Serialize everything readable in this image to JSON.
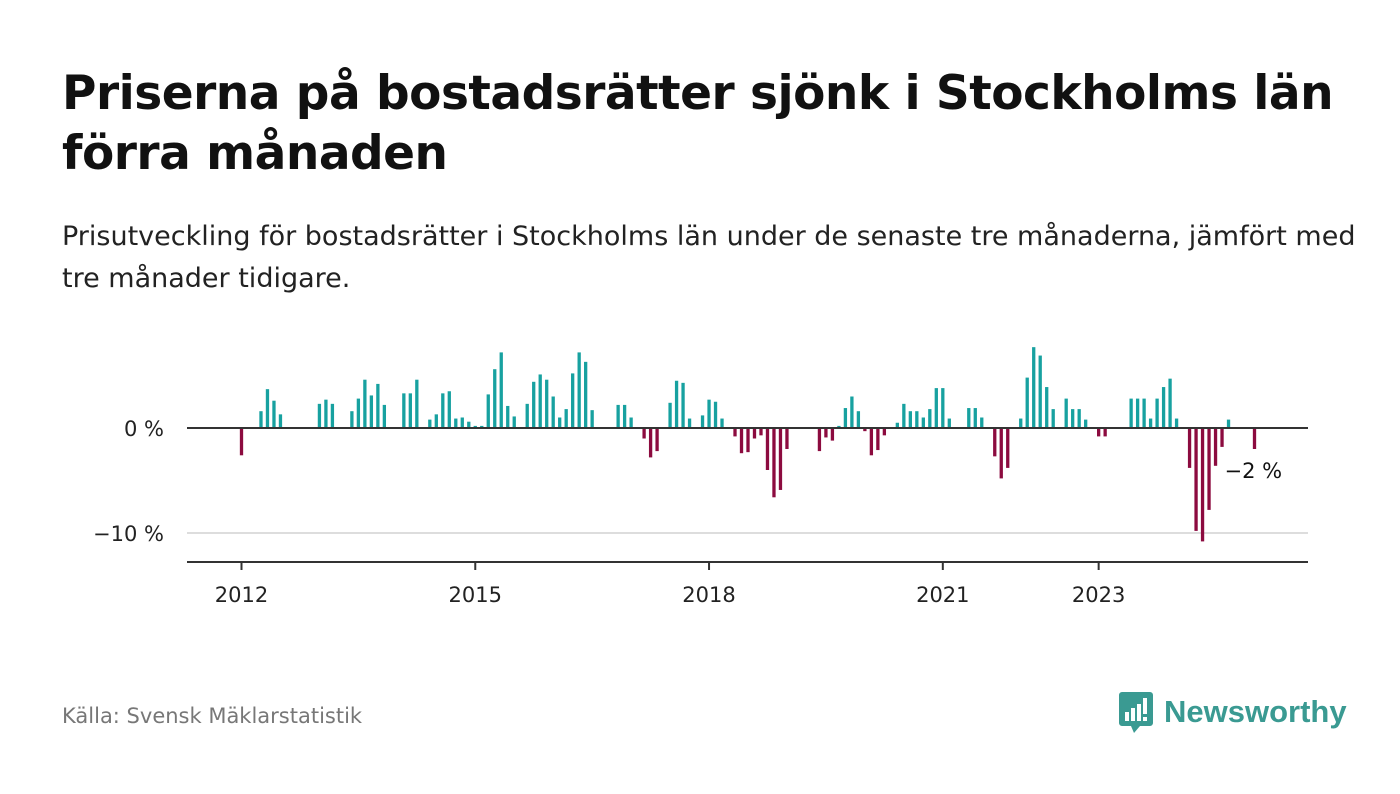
{
  "title": "Priserna på bostadsrätter sjönk i Stockholms län förra månaden",
  "subtitle": "Prisutveckling för bostadsrätter i Stockholms län under de senaste tre månaderna, jämfört med tre månader tidigare.",
  "source": "Källa: Svensk Mäklarstatistik",
  "brand": "Newsworthy",
  "colors": {
    "positive": "#17a1a0",
    "negative": "#8c0b3f",
    "zero_line": "#333333",
    "grid": "#dddddd",
    "brand": "#3a9a92"
  },
  "chart_data": {
    "type": "bar",
    "x_start": "2012-01",
    "x_end": "2023-01",
    "x_step": "month",
    "xticks": [
      "2012",
      "2015",
      "2018",
      "2021",
      "2023"
    ],
    "ytick_labels": [
      "0 %",
      "−10 %"
    ],
    "yticks": [
      0,
      -10
    ],
    "ylim": [
      -12.5,
      8
    ],
    "last_value_label": "−2 %",
    "values": [
      -2.6,
      0,
      0,
      1.6,
      3.7,
      2.6,
      1.3,
      0,
      0,
      0,
      0,
      0,
      2.3,
      2.7,
      2.3,
      0,
      0,
      1.6,
      2.8,
      4.6,
      3.1,
      4.2,
      2.2,
      0,
      0,
      3.3,
      3.3,
      4.6,
      0,
      0.8,
      1.3,
      3.3,
      3.5,
      0.9,
      1.0,
      0.6,
      0.2,
      0.2,
      3.2,
      5.6,
      7.2,
      2.1,
      1.1,
      0,
      2.3,
      4.4,
      5.1,
      4.6,
      3.0,
      1.0,
      1.8,
      5.2,
      7.2,
      6.3,
      1.7,
      0,
      0,
      0,
      2.2,
      2.2,
      1.0,
      0,
      -1.0,
      -2.8,
      -2.2,
      0,
      2.4,
      4.5,
      4.3,
      0.9,
      0,
      1.2,
      2.7,
      2.5,
      0.9,
      0,
      -0.8,
      -2.4,
      -2.3,
      -1.0,
      -0.7,
      -4.0,
      -6.6,
      -5.9,
      -2.0,
      0,
      0,
      0,
      0,
      -2.2,
      -0.9,
      -1.2,
      0.2,
      1.9,
      3.0,
      1.6,
      -0.3,
      -2.6,
      -2.1,
      -0.7,
      0,
      0.5,
      2.3,
      1.6,
      1.6,
      1.0,
      1.8,
      3.8,
      3.8,
      0.9,
      0,
      0,
      1.9,
      1.9,
      1.0,
      0,
      -2.7,
      -4.8,
      -3.8,
      0,
      0.9,
      4.8,
      7.7,
      6.9,
      3.9,
      1.8,
      0,
      2.8,
      1.8,
      1.8,
      0.8,
      0,
      -0.8,
      -0.8,
      0,
      0,
      0,
      2.8,
      2.8,
      2.8,
      0.9,
      2.8,
      3.9,
      4.7,
      0.9,
      0,
      -3.8,
      -9.8,
      -10.8,
      -7.8,
      -3.6,
      -1.8,
      0.8,
      0,
      0,
      0,
      -2.0
    ]
  }
}
